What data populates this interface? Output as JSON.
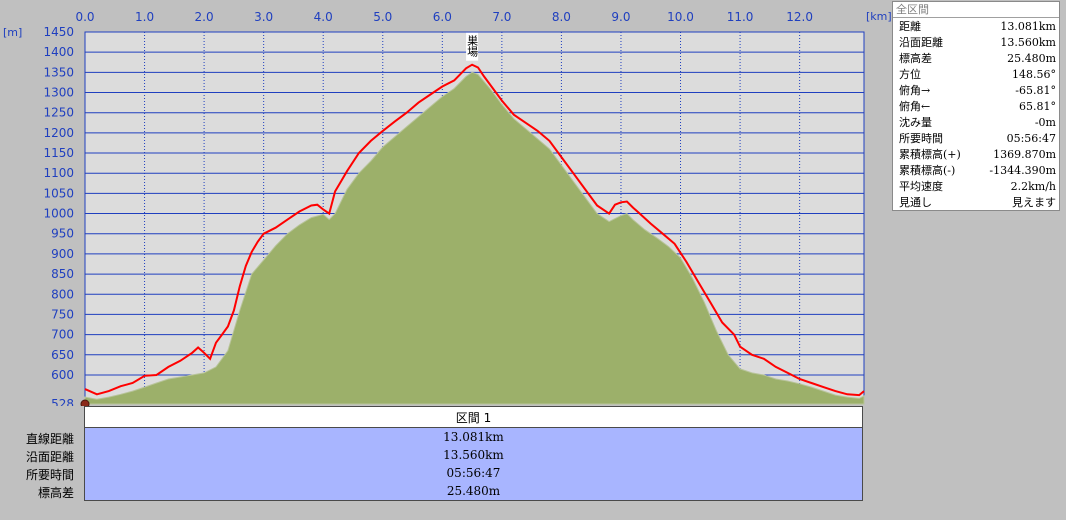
{
  "chart_data": {
    "type": "area",
    "x_unit_label": "[km]",
    "y_unit_label": "[m]",
    "x_ticks": [
      "0.0",
      "1.0",
      "2.0",
      "3.0",
      "4.0",
      "5.0",
      "6.0",
      "7.0",
      "8.0",
      "9.0",
      "10.0",
      "11.0",
      "12.0"
    ],
    "y_ticks": [
      "1450",
      "1400",
      "1350",
      "1300",
      "1250",
      "1200",
      "1150",
      "1100",
      "1050",
      "1000",
      "950",
      "900",
      "850",
      "800",
      "750",
      "700",
      "650",
      "600",
      "528"
    ],
    "xlim": [
      0,
      13.081
    ],
    "ylim": [
      528,
      1450
    ],
    "peak_label": "巣場",
    "series": [
      {
        "color": "#ff0000",
        "x": [
          0.0,
          0.2,
          0.4,
          0.6,
          0.8,
          1.0,
          1.2,
          1.4,
          1.6,
          1.8,
          1.9,
          2.0,
          2.1,
          2.2,
          2.3,
          2.4,
          2.5,
          2.6,
          2.7,
          2.8,
          2.9,
          3.0,
          3.2,
          3.4,
          3.6,
          3.8,
          3.9,
          4.0,
          4.1,
          4.2,
          4.3,
          4.4,
          4.6,
          4.8,
          5.0,
          5.2,
          5.4,
          5.6,
          5.8,
          6.0,
          6.2,
          6.4,
          6.5,
          6.6,
          6.7,
          6.8,
          7.0,
          7.2,
          7.4,
          7.6,
          7.8,
          8.0,
          8.2,
          8.4,
          8.6,
          8.8,
          8.9,
          9.0,
          9.1,
          9.2,
          9.3,
          9.5,
          9.7,
          9.9,
          10.1,
          10.3,
          10.5,
          10.7,
          10.9,
          11.0,
          11.2,
          11.4,
          11.6,
          11.8,
          12.0,
          12.2,
          12.4,
          12.6,
          12.8,
          13.0,
          13.081
        ],
        "y": [
          565,
          552,
          560,
          572,
          580,
          598,
          600,
          620,
          635,
          655,
          668,
          655,
          640,
          680,
          700,
          720,
          760,
          820,
          870,
          905,
          930,
          950,
          965,
          985,
          1005,
          1020,
          1022,
          1010,
          1000,
          1055,
          1080,
          1105,
          1150,
          1180,
          1205,
          1228,
          1250,
          1275,
          1295,
          1315,
          1330,
          1360,
          1369,
          1362,
          1340,
          1320,
          1280,
          1245,
          1225,
          1205,
          1180,
          1140,
          1100,
          1060,
          1020,
          1000,
          1022,
          1028,
          1030,
          1015,
          1002,
          975,
          950,
          925,
          880,
          830,
          780,
          730,
          700,
          670,
          650,
          640,
          620,
          605,
          590,
          580,
          570,
          560,
          552,
          550,
          560
        ]
      },
      {
        "color": "#9cb06a",
        "x": [
          0.0,
          0.2,
          0.4,
          0.6,
          0.8,
          1.0,
          1.2,
          1.4,
          1.6,
          1.8,
          2.0,
          2.2,
          2.4,
          2.6,
          2.8,
          3.0,
          3.2,
          3.4,
          3.6,
          3.8,
          4.0,
          4.1,
          4.2,
          4.4,
          4.6,
          4.8,
          5.0,
          5.2,
          5.4,
          5.6,
          5.8,
          6.0,
          6.2,
          6.4,
          6.5,
          6.6,
          6.8,
          7.0,
          7.2,
          7.4,
          7.6,
          7.8,
          8.0,
          8.2,
          8.4,
          8.6,
          8.8,
          9.0,
          9.1,
          9.2,
          9.4,
          9.6,
          9.8,
          10.0,
          10.2,
          10.4,
          10.6,
          10.8,
          11.0,
          11.2,
          11.4,
          11.6,
          11.8,
          12.0,
          12.2,
          12.4,
          12.6,
          12.8,
          13.0,
          13.081
        ],
        "y": [
          545,
          540,
          545,
          552,
          560,
          570,
          580,
          590,
          595,
          600,
          605,
          620,
          660,
          760,
          850,
          885,
          920,
          950,
          972,
          990,
          998,
          985,
          1000,
          1060,
          1100,
          1130,
          1165,
          1190,
          1215,
          1240,
          1265,
          1290,
          1310,
          1340,
          1350,
          1345,
          1310,
          1270,
          1235,
          1210,
          1185,
          1160,
          1120,
          1080,
          1040,
          1000,
          980,
          995,
          1000,
          985,
          960,
          940,
          918,
          890,
          840,
          780,
          710,
          650,
          615,
          605,
          600,
          590,
          585,
          578,
          570,
          560,
          550,
          545,
          542,
          548
        ]
      }
    ]
  },
  "stats_panel": {
    "title": "全区間",
    "rows": [
      {
        "label": "距離",
        "value": "13.081km"
      },
      {
        "label": "沿面距離",
        "value": "13.560km"
      },
      {
        "label": "標高差",
        "value": "25.480m"
      },
      {
        "label": "方位",
        "value": "148.56°"
      },
      {
        "label": "俯角→",
        "value": "-65.81°"
      },
      {
        "label": "俯角←",
        "value": "65.81°"
      },
      {
        "label": "沈み量",
        "value": "-0m"
      },
      {
        "label": "所要時間",
        "value": "05:56:47"
      },
      {
        "label": "累積標高(+)",
        "value": "1369.870m"
      },
      {
        "label": "累積標高(-)",
        "value": "-1344.390m"
      },
      {
        "label": "平均速度",
        "value": "2.2km/h"
      },
      {
        "label": "見通し",
        "value": "見えます"
      }
    ]
  },
  "section_table": {
    "header": "区間 1",
    "rows": [
      {
        "label": "直線距離",
        "value": "13.081km"
      },
      {
        "label": "沿面距離",
        "value": "13.560km"
      },
      {
        "label": "所要時間",
        "value": "05:56:47"
      },
      {
        "label": "標高差",
        "value": "25.480m"
      }
    ]
  },
  "colors": {
    "plot_bg": "#dcdcdc",
    "grid": "#1f3fbf",
    "axis_text": "#1f3fbf",
    "route": "#ff0000",
    "terrain": "#9cb06a",
    "section_bg": "#a8b5ff"
  }
}
